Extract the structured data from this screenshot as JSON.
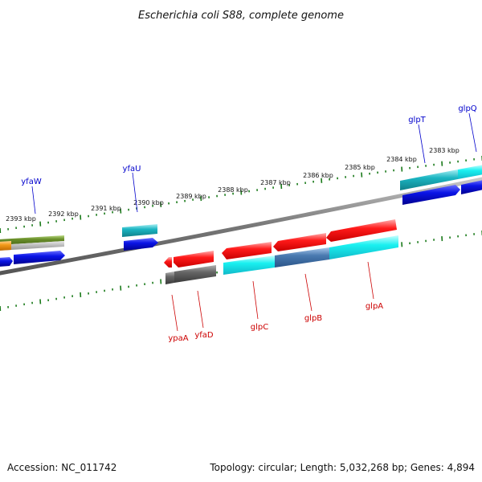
{
  "title": "Escherichia coli S88, complete genome",
  "footer": {
    "accession": "Accession: NC_011742",
    "stats": "Topology: circular; Length: 5,032,268 bp; Genes: 4,894"
  },
  "scale_labels": [
    "2393 kbp",
    "2392 kbp",
    "2391 kbp",
    "2390 kbp",
    "2389 kbp",
    "2388 kbp",
    "2387 kbp",
    "2386 kbp",
    "2385 kbp",
    "2384 kbp",
    "2383 kbp"
  ],
  "genes": {
    "forward": [
      "yfaW",
      "yfaU",
      "glpT",
      "glpQ"
    ],
    "reverse": [
      "ypaA",
      "yfaD",
      "glpC",
      "glpB",
      "glpA"
    ]
  },
  "colors": {
    "forward_label": "#0000cc",
    "reverse_label": "#cc0000",
    "backbone": "#888888",
    "ticks": "#1a7a1a",
    "cds_red": "#ff1010",
    "cds_blue": "#0a14e6",
    "cds_cyan": "#19f0f0",
    "cds_teal": "#1bb5c2",
    "cds_olive": "#6a8f2a",
    "cds_gray": "#666666",
    "cds_steel": "#4a7ab0",
    "cds_orange": "#f29a1a"
  }
}
